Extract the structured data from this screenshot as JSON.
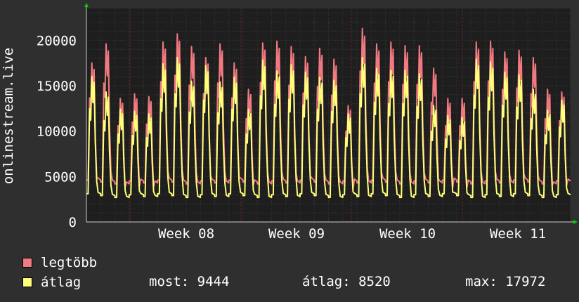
{
  "chart_data": {
    "type": "line",
    "ylabel": "onlinestream.live",
    "y_ticks": [
      0,
      5000,
      10000,
      15000,
      20000
    ],
    "x_ticks": [
      "Week 08",
      "Week 09",
      "Week 10",
      "Week 11"
    ],
    "ylim": [
      0,
      23500
    ],
    "grid": true,
    "colors": {
      "background": "#2f2f2f",
      "plot": "#1e1e1e",
      "grid": "#3f3f3f",
      "week_line": "#6a2b2b",
      "axis_arrow": "#00d000"
    },
    "series": [
      {
        "name": "legtöbb",
        "color": "#f07a80",
        "peaks": [
          17500,
          19600,
          13600,
          14100,
          13800,
          19800,
          20700,
          19300,
          18100,
          19600,
          17500,
          14600,
          19700,
          19900,
          19300,
          18200,
          19100,
          17900,
          12800,
          21300,
          19600,
          19800,
          19400,
          19400,
          16900,
          13600,
          13600,
          19800,
          19900,
          18700,
          18900,
          18100,
          14600,
          14300
        ]
      },
      {
        "name": "átlag",
        "color": "#ffff7a",
        "peaks": [
          16000,
          14300,
          12400,
          12200,
          11900,
          17400,
          18100,
          15500,
          17200,
          15400,
          15900,
          12400,
          17800,
          16600,
          17300,
          16500,
          15900,
          15600,
          11900,
          18100,
          16900,
          16700,
          16700,
          16300,
          12800,
          11700,
          11500,
          17900,
          17600,
          16500,
          16200,
          14600,
          12300,
          13400
        ]
      }
    ]
  },
  "legend": [
    {
      "label": "legtöbb",
      "color": "#f07a80"
    },
    {
      "label": "átlag",
      "color": "#ffff7a"
    }
  ],
  "stats": {
    "now": "most: 9444",
    "avg": "átlag: 8520",
    "max": "max: 17972"
  }
}
